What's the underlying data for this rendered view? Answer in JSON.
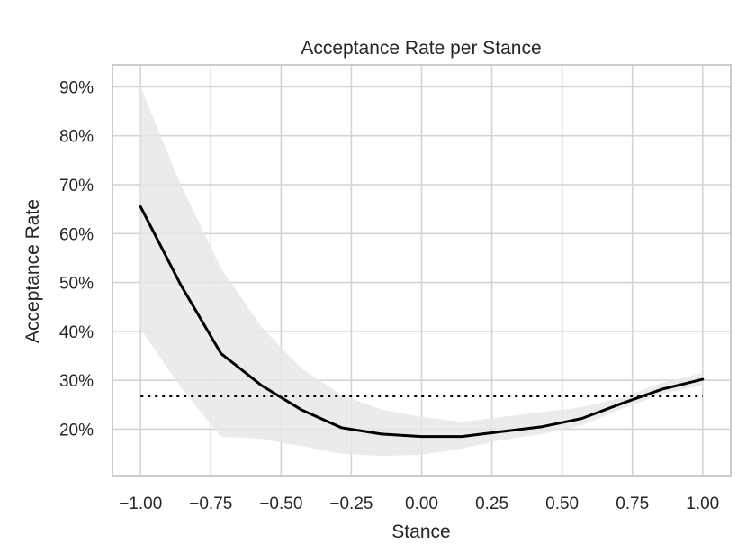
{
  "chart_data": {
    "type": "line",
    "title": "Acceptance Rate per Stance",
    "xlabel": "Stance",
    "ylabel": "Acceptance Rate",
    "xlim": [
      -1.1,
      1.1
    ],
    "ylim": [
      10.5,
      94.5
    ],
    "x_ticks": [
      -1.0,
      -0.75,
      -0.5,
      -0.25,
      0.0,
      0.25,
      0.5,
      0.75,
      1.0
    ],
    "x_tick_labels": [
      "−1.00",
      "−0.75",
      "−0.50",
      "−0.25",
      "0.00",
      "0.25",
      "0.50",
      "0.75",
      "1.00"
    ],
    "y_ticks": [
      20,
      30,
      40,
      50,
      60,
      70,
      80,
      90
    ],
    "y_tick_labels": [
      "20%",
      "30%",
      "40%",
      "50%",
      "60%",
      "70%",
      "80%",
      "90%"
    ],
    "grid": true,
    "x": [
      -1.0,
      -0.857,
      -0.714,
      -0.571,
      -0.429,
      -0.286,
      -0.143,
      0.0,
      0.143,
      0.286,
      0.429,
      0.571,
      0.714,
      0.857,
      1.0
    ],
    "series": [
      {
        "values": [
          65.5,
          49.5,
          35.5,
          29.0,
          24.0,
          20.3,
          19.0,
          18.5,
          18.5,
          19.5,
          20.5,
          22.2,
          25.3,
          28.2,
          30.2
        ],
        "lower": [
          40.5,
          28.5,
          18.5,
          18.0,
          16.5,
          15.0,
          14.5,
          14.8,
          16.0,
          17.8,
          19.0,
          20.8,
          24.2,
          27.2,
          29.0
        ],
        "upper": [
          90.0,
          70.0,
          53.0,
          41.0,
          32.5,
          27.0,
          24.0,
          22.5,
          21.5,
          22.5,
          23.5,
          24.5,
          26.5,
          29.5,
          31.5
        ],
        "color": "#000000",
        "band_color": "#e6e6e6"
      }
    ],
    "reference_line": {
      "value": 26.8,
      "style": "dotted",
      "color": "#000000"
    }
  }
}
